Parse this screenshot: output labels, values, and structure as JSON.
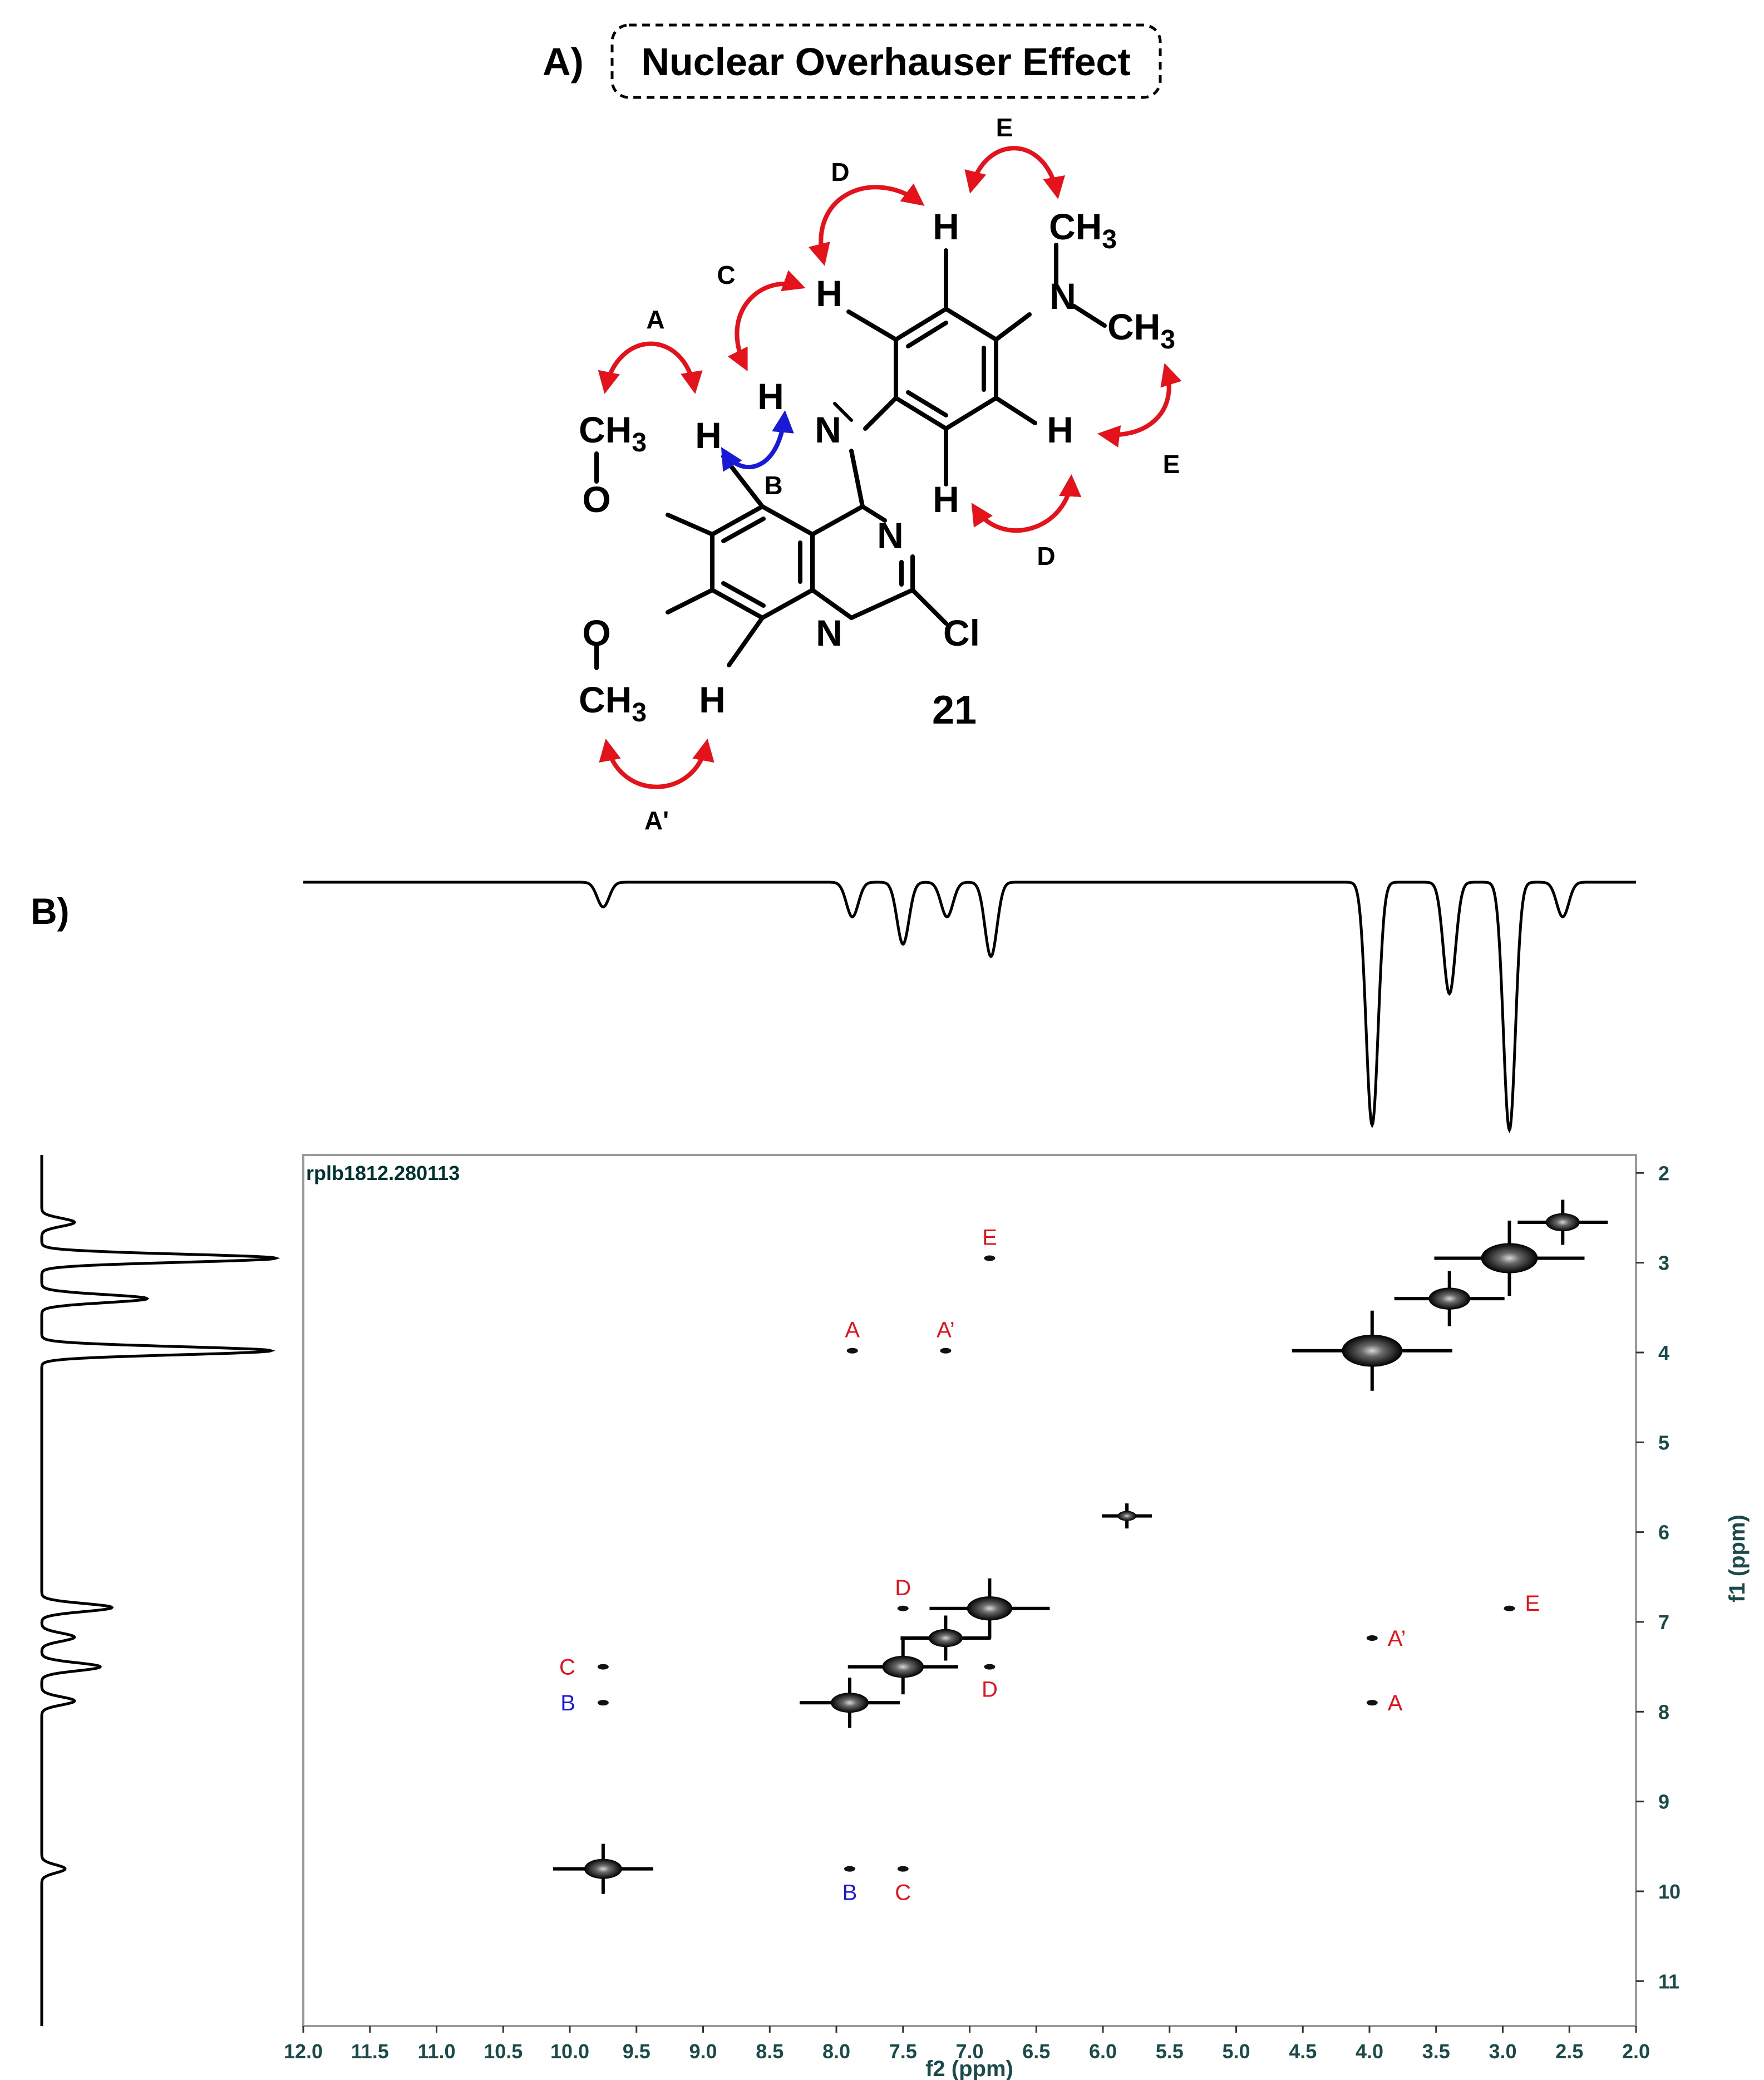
{
  "panel_a": {
    "label": "A)",
    "title": "Nuclear Overhauser Effect",
    "compound_number": "21",
    "atoms": {
      "h": "H",
      "n": "N",
      "o": "O",
      "cl": "Cl",
      "ch3": "CH",
      "sub3": "3"
    },
    "noe_labels": [
      "A",
      "A'",
      "B",
      "C",
      "D",
      "D",
      "E",
      "E"
    ],
    "colors": {
      "red_arrow": "#e3121b",
      "blue_arrow": "#1a1ad6"
    }
  },
  "panel_b": {
    "label": "B)",
    "dataset_name": "rplb1812.280113"
  },
  "chart_data": {
    "type": "heatmap",
    "subtype": "2D NOESY contour spectrum",
    "xlabel": "f2 (ppm)",
    "ylabel": "f1 (ppm)",
    "xlim": [
      12.0,
      2.0
    ],
    "ylim": [
      11.5,
      1.8
    ],
    "x_ticks": [
      "12.0",
      "11.5",
      "11.0",
      "10.5",
      "10.0",
      "9.5",
      "9.0",
      "8.5",
      "8.0",
      "7.5",
      "7.0",
      "6.5",
      "6.0",
      "5.5",
      "5.0",
      "4.5",
      "4.0",
      "3.5",
      "3.0",
      "2.5",
      "2.0"
    ],
    "y_ticks": [
      "2",
      "3",
      "4",
      "5",
      "6",
      "7",
      "8",
      "9",
      "10",
      "11"
    ],
    "projection_peaks": [
      {
        "ppm": 9.75,
        "intensity": 0.1
      },
      {
        "ppm": 7.88,
        "intensity": 0.14
      },
      {
        "ppm": 7.5,
        "intensity": 0.25
      },
      {
        "ppm": 7.17,
        "intensity": 0.14
      },
      {
        "ppm": 6.84,
        "intensity": 0.3
      },
      {
        "ppm": 3.98,
        "intensity": 0.98
      },
      {
        "ppm": 3.4,
        "intensity": 0.45
      },
      {
        "ppm": 2.95,
        "intensity": 1.0
      },
      {
        "ppm": 2.55,
        "intensity": 0.14
      }
    ],
    "diagonal_peaks": [
      {
        "f2": 9.75,
        "f1": 9.75,
        "size": 1.0
      },
      {
        "f2": 7.9,
        "f1": 7.9,
        "size": 1.0
      },
      {
        "f2": 7.5,
        "f1": 7.5,
        "size": 1.1
      },
      {
        "f2": 7.18,
        "f1": 7.18,
        "size": 0.9
      },
      {
        "f2": 6.85,
        "f1": 6.85,
        "size": 1.2
      },
      {
        "f2": 5.82,
        "f1": 5.82,
        "size": 0.5
      },
      {
        "f2": 3.98,
        "f1": 3.98,
        "size": 1.6
      },
      {
        "f2": 3.4,
        "f1": 3.4,
        "size": 1.1
      },
      {
        "f2": 2.95,
        "f1": 2.95,
        "size": 1.5
      },
      {
        "f2": 2.55,
        "f1": 2.55,
        "size": 0.9
      }
    ],
    "cross_peaks": [
      {
        "f2": 6.85,
        "f1": 2.95,
        "label": "E",
        "color": "#e3121b"
      },
      {
        "f2": 7.88,
        "f1": 3.98,
        "label": "A",
        "color": "#e3121b"
      },
      {
        "f2": 7.18,
        "f1": 3.98,
        "label": "A’",
        "color": "#e3121b"
      },
      {
        "f2": 7.5,
        "f1": 6.85,
        "label": "D",
        "color": "#e3121b"
      },
      {
        "f2": 6.85,
        "f1": 7.5,
        "label": "D",
        "color": "#e3121b"
      },
      {
        "f2": 9.75,
        "f1": 7.5,
        "label": "C",
        "color": "#e3121b"
      },
      {
        "f2": 9.75,
        "f1": 7.9,
        "label": "B",
        "color": "#1a1ad6"
      },
      {
        "f2": 7.9,
        "f1": 9.75,
        "label": "B",
        "color": "#1a1ad6"
      },
      {
        "f2": 7.5,
        "f1": 9.75,
        "label": "C",
        "color": "#e3121b"
      },
      {
        "f2": 3.98,
        "f1": 7.18,
        "label": "A’",
        "color": "#e3121b"
      },
      {
        "f2": 3.98,
        "f1": 7.9,
        "label": "A",
        "color": "#e3121b"
      },
      {
        "f2": 2.95,
        "f1": 6.85,
        "label": "E",
        "color": "#e3121b"
      }
    ]
  }
}
